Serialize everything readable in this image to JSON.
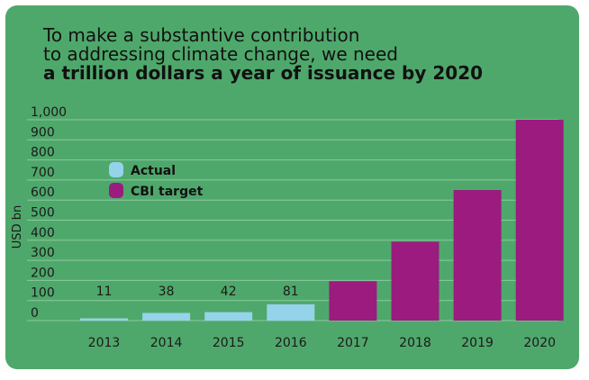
{
  "chart_data": {
    "type": "bar",
    "title": [
      "To make a substantive contribution",
      "to addressing climate change, we need"
    ],
    "subtitle": "a trillion dollars a year of issuance by 2020",
    "ylabel": "USD bn",
    "xlabel": "",
    "ylim": [
      0,
      1000
    ],
    "yticks": [
      {
        "value": 0,
        "label": "0"
      },
      {
        "value": 100,
        "label": "100"
      },
      {
        "value": 200,
        "label": "200"
      },
      {
        "value": 300,
        "label": "300"
      },
      {
        "value": 400,
        "label": "400"
      },
      {
        "value": 500,
        "label": "500"
      },
      {
        "value": 600,
        "label": "600"
      },
      {
        "value": 700,
        "label": "700"
      },
      {
        "value": 800,
        "label": "800"
      },
      {
        "value": 900,
        "label": "900"
      },
      {
        "value": 1000,
        "label": "1,000"
      }
    ],
    "grid": true,
    "legend_position": "upper-left",
    "categories": [
      "2013",
      "2014",
      "2015",
      "2016",
      "2017",
      "2018",
      "2019",
      "2020"
    ],
    "series": [
      {
        "name": "Actual",
        "color": "#94d3ea",
        "values": [
          11,
          38,
          42,
          81,
          null,
          null,
          null,
          null
        ],
        "labels": [
          "11",
          "38",
          "42",
          "81",
          "",
          "",
          "",
          ""
        ]
      },
      {
        "name": "CBI target",
        "color": "#9b1b7f",
        "values": [
          null,
          null,
          null,
          null,
          196,
          393,
          650,
          1000
        ],
        "labels": [
          "",
          "",
          "",
          "",
          "",
          "",
          "",
          ""
        ]
      }
    ]
  }
}
